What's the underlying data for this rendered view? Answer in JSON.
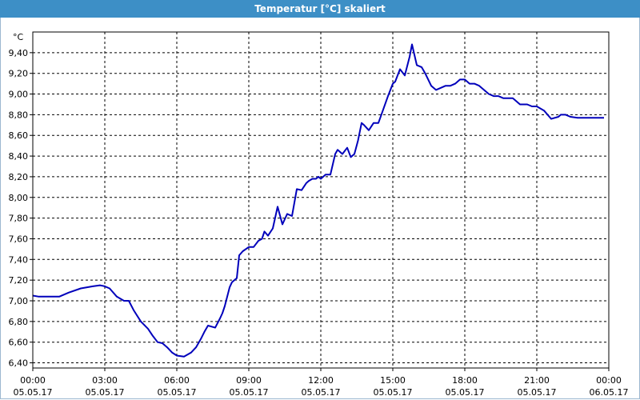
{
  "chart_data": {
    "type": "line",
    "title": "Temperatur [°C] skaliert",
    "ylabel": "°C",
    "xlabel": "",
    "ylim": [
      6.35,
      9.6
    ],
    "xlim_hours": [
      0,
      24
    ],
    "grid": true,
    "y_ticks": [
      "6,40",
      "6,60",
      "6,80",
      "7,00",
      "7,20",
      "7,40",
      "7,60",
      "7,80",
      "8,00",
      "8,20",
      "8,40",
      "8,60",
      "8,80",
      "9,00",
      "9,20",
      "9,40"
    ],
    "x_ticks": [
      {
        "time": "00:00",
        "date": "05.05.17"
      },
      {
        "time": "03:00",
        "date": "05.05.17"
      },
      {
        "time": "06:00",
        "date": "05.05.17"
      },
      {
        "time": "09:00",
        "date": "05.05.17"
      },
      {
        "time": "12:00",
        "date": "05.05.17"
      },
      {
        "time": "15:00",
        "date": "05.05.17"
      },
      {
        "time": "18:00",
        "date": "05.05.17"
      },
      {
        "time": "21:00",
        "date": "05.05.17"
      },
      {
        "time": "00:00",
        "date": "06.05.17"
      }
    ],
    "series": [
      {
        "color": "#0000bb",
        "x_hours": [
          0,
          0.25,
          0.5,
          1.0,
          1.1,
          1.5,
          2.0,
          2.5,
          2.8,
          3.0,
          3.2,
          3.5,
          3.8,
          4.0,
          4.2,
          4.5,
          4.8,
          5.0,
          5.2,
          5.4,
          5.6,
          5.8,
          6.0,
          6.3,
          6.6,
          6.8,
          7.0,
          7.15,
          7.3,
          7.6,
          7.8,
          7.9,
          8.0,
          8.2,
          8.3,
          8.5,
          8.6,
          8.75,
          9.0,
          9.2,
          9.4,
          9.55,
          9.65,
          9.8,
          10.0,
          10.2,
          10.4,
          10.6,
          10.8,
          11.0,
          11.2,
          11.4,
          11.5,
          11.65,
          11.8,
          11.9,
          12.0,
          12.2,
          12.4,
          12.6,
          12.7,
          12.9,
          13.1,
          13.25,
          13.4,
          13.55,
          13.7,
          13.8,
          14.0,
          14.2,
          14.4,
          14.6,
          14.8,
          15.0,
          15.1,
          15.3,
          15.5,
          15.7,
          15.8,
          16.0,
          16.2,
          16.35,
          16.6,
          16.8,
          17.0,
          17.2,
          17.4,
          17.6,
          17.8,
          18.0,
          18.2,
          18.4,
          18.6,
          18.8,
          19.0,
          19.2,
          19.4,
          19.6,
          19.8,
          20.0,
          20.3,
          20.6,
          20.8,
          21.0,
          21.3,
          21.6,
          21.9,
          22.0,
          22.2,
          22.4,
          22.7,
          23.0,
          23.3,
          23.5,
          23.8
        ],
        "values": [
          7.05,
          7.04,
          7.04,
          7.04,
          7.04,
          7.08,
          7.12,
          7.14,
          7.15,
          7.14,
          7.12,
          7.04,
          7.0,
          7.0,
          6.91,
          6.8,
          6.73,
          6.66,
          6.6,
          6.59,
          6.55,
          6.5,
          6.47,
          6.46,
          6.5,
          6.55,
          6.63,
          6.7,
          6.76,
          6.74,
          6.83,
          6.88,
          6.95,
          7.13,
          7.18,
          7.22,
          7.44,
          7.48,
          7.52,
          7.52,
          7.58,
          7.6,
          7.67,
          7.63,
          7.7,
          7.91,
          7.74,
          7.84,
          7.82,
          8.08,
          8.07,
          8.14,
          8.16,
          8.18,
          8.18,
          8.2,
          8.18,
          8.22,
          8.22,
          8.42,
          8.46,
          8.42,
          8.48,
          8.39,
          8.42,
          8.55,
          8.72,
          8.7,
          8.65,
          8.72,
          8.72,
          8.85,
          8.98,
          9.1,
          9.12,
          9.24,
          9.18,
          9.36,
          9.48,
          9.28,
          9.26,
          9.2,
          9.08,
          9.04,
          9.06,
          9.08,
          9.08,
          9.1,
          9.14,
          9.14,
          9.1,
          9.1,
          9.08,
          9.04,
          9.0,
          8.98,
          8.98,
          8.96,
          8.96,
          8.96,
          8.9,
          8.9,
          8.88,
          8.88,
          8.84,
          8.76,
          8.78,
          8.8,
          8.8,
          8.78,
          8.77,
          8.77,
          8.77,
          8.77,
          8.77
        ]
      }
    ]
  }
}
